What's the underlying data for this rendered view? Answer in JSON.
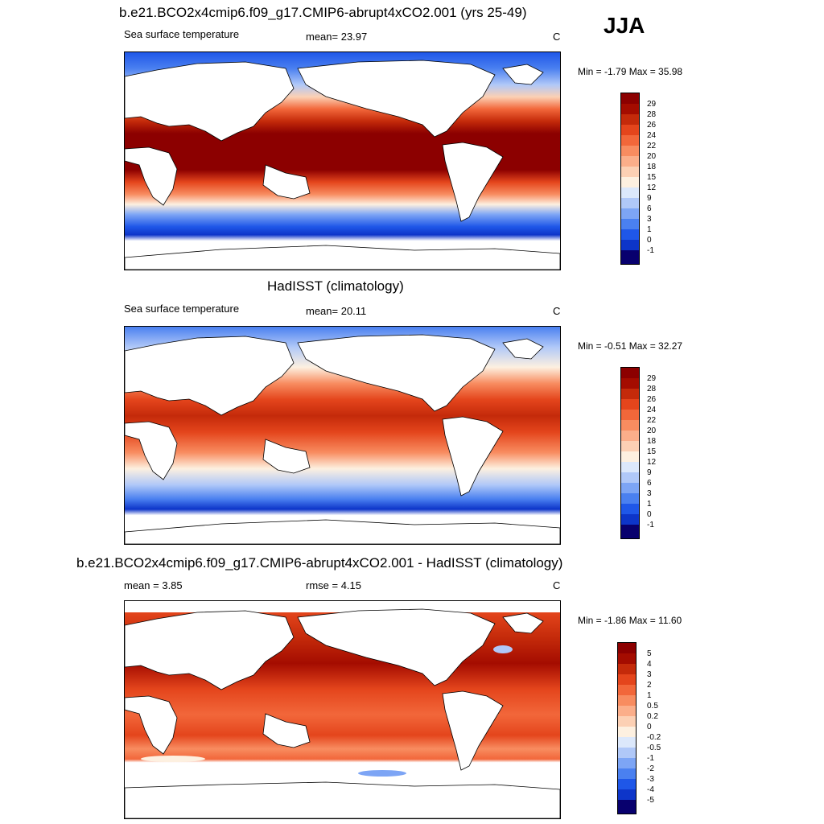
{
  "season": "JJA",
  "panels": [
    {
      "title": "b.e21.BCO2x4cmip6.f09_g17.CMIP6-abrupt4xCO2.001 (yrs 25-49)",
      "left_label": "Sea surface temperature",
      "center_label": "mean=  23.97",
      "units": "C",
      "minmax": "Min =  -1.79 Max =  35.98"
    },
    {
      "title": "HadISST (climatology)",
      "left_label": "Sea surface temperature",
      "center_label": "mean=  20.11",
      "units": "C",
      "minmax": "Min =  -0.51 Max =  32.27"
    },
    {
      "title": "b.e21.BCO2x4cmip6.f09_g17.CMIP6-abrupt4xCO2.001 - HadISST (climatology)",
      "left_label": "mean =   3.85",
      "center_label": "rmse =   4.15",
      "units": "C",
      "minmax": "Min =  -1.86 Max =  11.60"
    }
  ],
  "colors": {
    "sst": [
      "#08006e",
      "#0a1a9a",
      "#0d35c9",
      "#1f57e8",
      "#4a80f0",
      "#7da5f5",
      "#b0c8f8",
      "#dce8fb",
      "#fdf0e0",
      "#fcd0b4",
      "#fbae8a",
      "#f88c60",
      "#f2673a",
      "#e4451c",
      "#c42a0a",
      "#8c0000"
    ],
    "diff": [
      "#08006e",
      "#0a1a9a",
      "#0d35c9",
      "#1f57e8",
      "#4a80f0",
      "#7da5f5",
      "#b0c8f8",
      "#dce8fb",
      "#fdf0e0",
      "#fcd0b4",
      "#fbae8a",
      "#f88c60",
      "#f2673a",
      "#e4451c",
      "#c42a0a",
      "#8c0000"
    ],
    "land": "#ffffff"
  },
  "chart_data": [
    {
      "type": "heatmap",
      "title": "b.e21.BCO2x4cmip6.f09_g17.CMIP6-abrupt4xCO2.001 (yrs 25-49)",
      "variable": "Sea surface temperature",
      "units": "C",
      "mean": 23.97,
      "min": -1.79,
      "max": 35.98,
      "colorbar_levels": [
        "29",
        "28",
        "26",
        "24",
        "22",
        "20",
        "18",
        "15",
        "12",
        "9",
        "6",
        "3",
        "1",
        "0",
        "-1"
      ]
    },
    {
      "type": "heatmap",
      "title": "HadISST (climatology)",
      "variable": "Sea surface temperature",
      "units": "C",
      "mean": 20.11,
      "min": -0.51,
      "max": 32.27,
      "colorbar_levels": [
        "29",
        "28",
        "26",
        "24",
        "22",
        "20",
        "18",
        "15",
        "12",
        "9",
        "6",
        "3",
        "1",
        "0",
        "-1"
      ]
    },
    {
      "type": "heatmap",
      "title": "b.e21.BCO2x4cmip6.f09_g17.CMIP6-abrupt4xCO2.001 - HadISST (climatology)",
      "units": "C",
      "mean": 3.85,
      "rmse": 4.15,
      "min": -1.86,
      "max": 11.6,
      "colorbar_levels": [
        "5",
        "4",
        "3",
        "2",
        "1",
        "0.5",
        "0.2",
        "0",
        "-0.2",
        "-0.5",
        "-1",
        "-2",
        "-3",
        "-4",
        "-5"
      ]
    }
  ]
}
